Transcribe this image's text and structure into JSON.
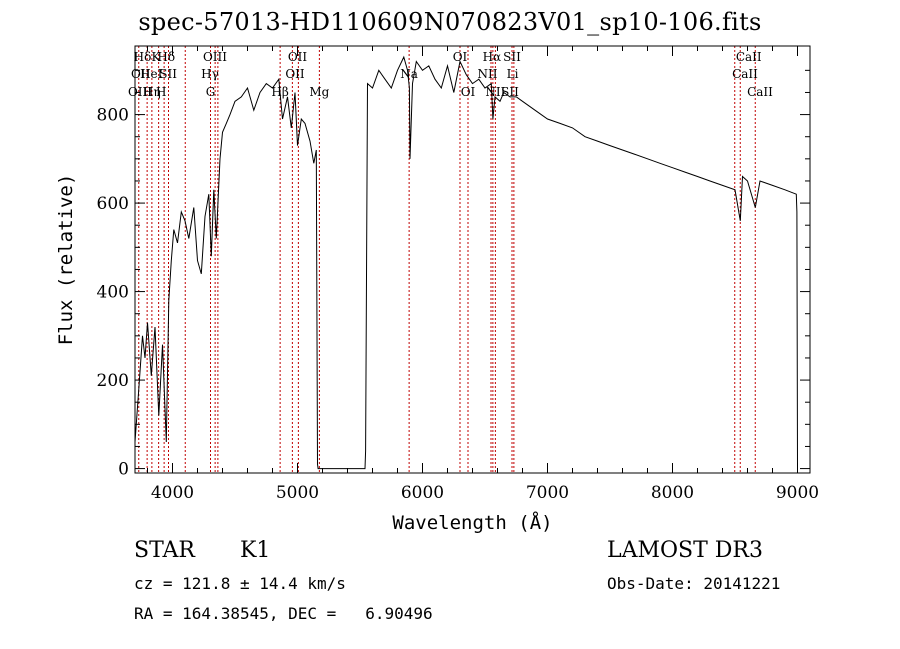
{
  "chart_data": {
    "type": "line",
    "title": "spec-57013-HD110609N070823V01_sp10-106.fits",
    "xlabel": "Wavelength (Å)",
    "ylabel": "Flux (relative)",
    "xlim": [
      3700,
      9100
    ],
    "ylim": [
      -10,
      955
    ],
    "xticks": [
      4000,
      5000,
      6000,
      7000,
      8000,
      9000
    ],
    "yticks": [
      0,
      200,
      400,
      600,
      800
    ],
    "grid": false,
    "series": [
      {
        "x": [
          3700,
          3730,
          3760,
          3780,
          3800,
          3830,
          3860,
          3890,
          3920,
          3950,
          3970,
          3990,
          4010,
          4040,
          4070,
          4100,
          4130,
          4170,
          4200,
          4230,
          4260,
          4290,
          4310,
          4330,
          4350,
          4380,
          4400,
          4430,
          4460,
          4500,
          4550,
          4600,
          4650,
          4700,
          4750,
          4800,
          4850,
          4880,
          4920,
          4950,
          4980,
          5000,
          5030,
          5060,
          5100,
          5130,
          5150,
          5160,
          5165,
          5540,
          5545,
          5560,
          5600,
          5650,
          5700,
          5750,
          5800,
          5850,
          5880,
          5895,
          5900,
          5920,
          5950,
          6000,
          6050,
          6100,
          6150,
          6200,
          6250,
          6300,
          6350,
          6400,
          6450,
          6500,
          6550,
          6563,
          6580,
          6620,
          6650,
          6700,
          6750,
          6800,
          6900,
          7000,
          7100,
          7200,
          7300,
          7400,
          7500,
          7600,
          7700,
          7800,
          7900,
          8000,
          8100,
          8200,
          8300,
          8400,
          8500,
          8542,
          8560,
          8600,
          8662,
          8700,
          8800,
          8900,
          8990,
          8995,
          9000
        ],
        "values": [
          60,
          180,
          300,
          250,
          330,
          210,
          320,
          120,
          280,
          60,
          380,
          470,
          540,
          510,
          580,
          560,
          520,
          590,
          470,
          440,
          570,
          620,
          480,
          630,
          520,
          700,
          760,
          780,
          800,
          830,
          840,
          860,
          810,
          850,
          870,
          860,
          880,
          790,
          840,
          770,
          850,
          730,
          790,
          780,
          740,
          690,
          720,
          10,
          0,
          0,
          40,
          870,
          860,
          900,
          880,
          860,
          900,
          930,
          900,
          860,
          700,
          870,
          920,
          900,
          910,
          880,
          860,
          910,
          850,
          920,
          890,
          870,
          880,
          860,
          870,
          790,
          840,
          830,
          850,
          840,
          840,
          830,
          810,
          790,
          780,
          770,
          750,
          740,
          730,
          720,
          710,
          700,
          690,
          680,
          670,
          660,
          650,
          640,
          630,
          560,
          660,
          650,
          590,
          650,
          640,
          630,
          620,
          580,
          0
        ]
      }
    ],
    "lines": {
      "x": [
        3730,
        3797,
        3835,
        3889,
        3933,
        3968,
        4102,
        4304,
        4341,
        4363,
        4861,
        4959,
        5007,
        5175,
        5893,
        6300,
        6364,
        6548,
        6563,
        6583,
        6716,
        6731,
        8498,
        8542,
        8662
      ],
      "labels": [
        {
          "text": "Hδ",
          "x": 3760,
          "row": 1
        },
        {
          "text": "K",
          "x": 3868,
          "row": 1
        },
        {
          "text": "Hδ",
          "x": 3950,
          "row": 1
        },
        {
          "text": "OIII",
          "x": 4340,
          "row": 1
        },
        {
          "text": "OII",
          "x": 5000,
          "row": 1
        },
        {
          "text": "OI",
          "x": 6300,
          "row": 1
        },
        {
          "text": "Hα",
          "x": 6555,
          "row": 1
        },
        {
          "text": "SII",
          "x": 6716,
          "row": 1
        },
        {
          "text": "CaII",
          "x": 8610,
          "row": 1
        },
        {
          "text": "OII",
          "x": 3745,
          "row": 2
        },
        {
          "text": "HeI",
          "x": 3830,
          "row": 2
        },
        {
          "text": "SII",
          "x": 3965,
          "row": 2
        },
        {
          "text": "Hγ",
          "x": 4300,
          "row": 2
        },
        {
          "text": "OII",
          "x": 4980,
          "row": 2
        },
        {
          "text": "Na",
          "x": 5893,
          "row": 2
        },
        {
          "text": "NII",
          "x": 6520,
          "row": 2
        },
        {
          "text": "Li",
          "x": 6720,
          "row": 2
        },
        {
          "text": "CaII",
          "x": 8580,
          "row": 2
        },
        {
          "text": "OIII",
          "x": 3740,
          "row": 3
        },
        {
          "text": "Hη",
          "x": 3835,
          "row": 3
        },
        {
          "text": "H",
          "x": 3910,
          "row": 3
        },
        {
          "text": "G",
          "x": 4304,
          "row": 3
        },
        {
          "text": "Hβ",
          "x": 4861,
          "row": 3
        },
        {
          "text": "Mg",
          "x": 5175,
          "row": 3
        },
        {
          "text": "OI",
          "x": 6364,
          "row": 3
        },
        {
          "text": "NII",
          "x": 6583,
          "row": 3
        },
        {
          "text": "SII",
          "x": 6700,
          "row": 3
        },
        {
          "text": "CaII",
          "x": 8700,
          "row": 3
        }
      ]
    }
  },
  "footer": {
    "class_label": "STAR",
    "subclass": "K1",
    "survey": "LAMOST DR3",
    "cz": "cz = 121.8 ± 14.4 km/s",
    "obs_date": "Obs-Date: 20141221",
    "radec": "RA = 164.38545, DEC =   6.90496"
  },
  "colors": {
    "axis": "#000000",
    "line_marker": "#c00000",
    "spectrum": "#000000"
  }
}
